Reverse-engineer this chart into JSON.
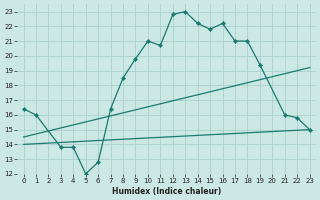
{
  "xlabel": "Humidex (Indice chaleur)",
  "bg_color": "#cce8e4",
  "grid_color": "#aad0cb",
  "line_color": "#1a7a6e",
  "xlim": [
    -0.5,
    23.5
  ],
  "ylim": [
    12,
    23.5
  ],
  "xticks": [
    0,
    1,
    2,
    3,
    4,
    5,
    6,
    7,
    8,
    9,
    10,
    11,
    12,
    13,
    14,
    15,
    16,
    17,
    18,
    19,
    20,
    21,
    22,
    23
  ],
  "yticks": [
    12,
    13,
    14,
    15,
    16,
    17,
    18,
    19,
    20,
    21,
    22,
    23
  ],
  "line1_x": [
    0,
    1,
    3,
    4,
    5,
    6,
    7,
    8,
    9,
    10,
    11,
    12,
    13,
    14,
    15,
    16,
    17,
    18,
    19,
    21,
    22,
    23
  ],
  "line1_y": [
    16.4,
    16.0,
    13.8,
    13.8,
    12.0,
    12.8,
    16.4,
    18.5,
    19.8,
    21.0,
    20.7,
    22.8,
    23.0,
    22.2,
    21.8,
    22.2,
    21.0,
    21.0,
    19.4,
    16.0,
    15.8,
    15.0
  ],
  "line2_x": [
    0,
    23
  ],
  "line2_y": [
    14.5,
    19.2
  ],
  "line3_x": [
    0,
    23
  ],
  "line3_y": [
    14.0,
    15.0
  ]
}
